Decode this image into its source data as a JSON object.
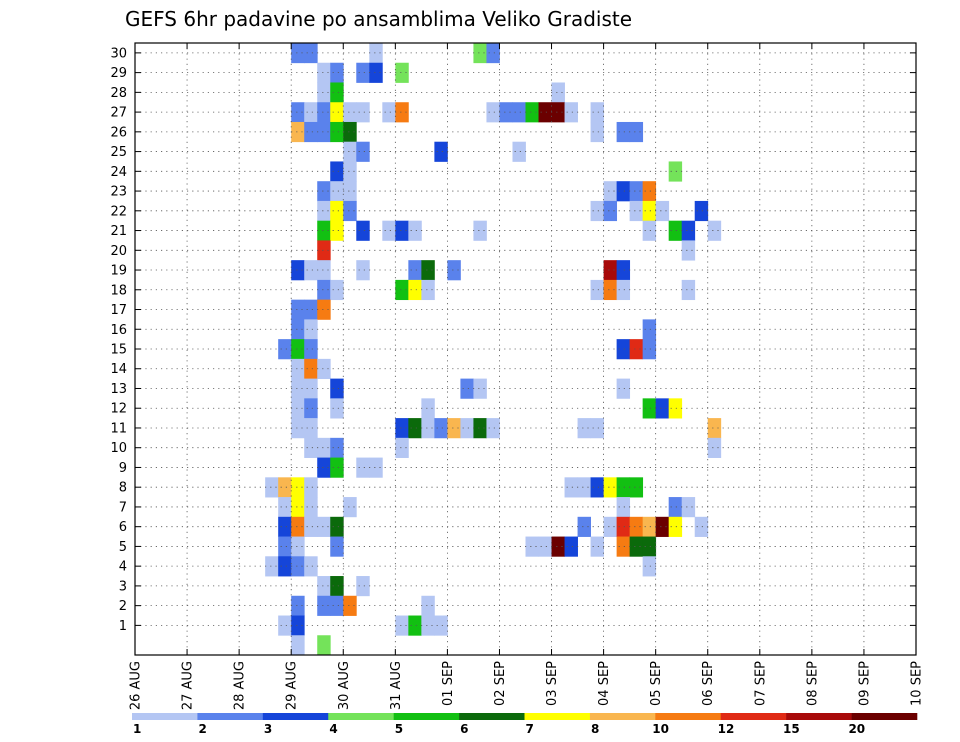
{
  "chart_data": {
    "type": "heatmap",
    "title": "GEFS 6hr padavine po ansamblima Veliko Gradiste",
    "x_ticks": [
      "26 AUG",
      "27 AUG",
      "28 AUG",
      "29 AUG",
      "30 AUG",
      "31 AUG",
      "01 SEP",
      "02 SEP",
      "03 SEP",
      "04 SEP",
      "05 SEP",
      "06 SEP",
      "07 SEP",
      "08 SEP",
      "09 SEP",
      "10 SEP"
    ],
    "y_ticks": [
      1,
      2,
      3,
      4,
      5,
      6,
      7,
      8,
      9,
      10,
      11,
      12,
      13,
      14,
      15,
      16,
      17,
      18,
      19,
      20,
      21,
      22,
      23,
      24,
      25,
      26,
      27,
      28,
      29,
      30
    ],
    "time_step_hours": 6,
    "grid": true,
    "legend": {
      "placement": "bottom",
      "labels": [
        "1",
        "2",
        "3",
        "4",
        "5",
        "6",
        "7",
        "8",
        "10",
        "12",
        "15",
        "20"
      ],
      "colors": [
        "#b4c6f3",
        "#5a82ec",
        "#1545d9",
        "#74e35a",
        "#12c012",
        "#0b6a0b",
        "#ffff00",
        "#f9b64f",
        "#f67b12",
        "#e02a15",
        "#a80a0a",
        "#6b0000"
      ]
    },
    "cells": [
      [
        12,
        30,
        2
      ],
      [
        13,
        30,
        2
      ],
      [
        18,
        30,
        1
      ],
      [
        26,
        30,
        4
      ],
      [
        27,
        30,
        2
      ],
      [
        14,
        29,
        1
      ],
      [
        15,
        29,
        2
      ],
      [
        17,
        29,
        2
      ],
      [
        18,
        29,
        3
      ],
      [
        20,
        29,
        4
      ],
      [
        14,
        28,
        1
      ],
      [
        15,
        28,
        5
      ],
      [
        32,
        28,
        1
      ],
      [
        12,
        27,
        2
      ],
      [
        13,
        27,
        1
      ],
      [
        14,
        27,
        2
      ],
      [
        15,
        27,
        7
      ],
      [
        16,
        27,
        1
      ],
      [
        17,
        27,
        1
      ],
      [
        19,
        27,
        1
      ],
      [
        20,
        27,
        9
      ],
      [
        27,
        27,
        1
      ],
      [
        28,
        27,
        2
      ],
      [
        29,
        27,
        2
      ],
      [
        30,
        27,
        5
      ],
      [
        31,
        27,
        12
      ],
      [
        32,
        27,
        12
      ],
      [
        33,
        27,
        1
      ],
      [
        35,
        27,
        1
      ],
      [
        12,
        26,
        8
      ],
      [
        13,
        26,
        2
      ],
      [
        14,
        26,
        2
      ],
      [
        15,
        26,
        5
      ],
      [
        16,
        26,
        6
      ],
      [
        35,
        26,
        1
      ],
      [
        37,
        26,
        2
      ],
      [
        38,
        26,
        2
      ],
      [
        16,
        25,
        1
      ],
      [
        17,
        25,
        2
      ],
      [
        23,
        25,
        3
      ],
      [
        29,
        25,
        1
      ],
      [
        15,
        24,
        3
      ],
      [
        16,
        24,
        1
      ],
      [
        41,
        24,
        4
      ],
      [
        14,
        23,
        2
      ],
      [
        15,
        23,
        1
      ],
      [
        16,
        23,
        1
      ],
      [
        36,
        23,
        1
      ],
      [
        37,
        23,
        3
      ],
      [
        38,
        23,
        2
      ],
      [
        39,
        23,
        9
      ],
      [
        14,
        22,
        1
      ],
      [
        15,
        22,
        7
      ],
      [
        16,
        22,
        2
      ],
      [
        35,
        22,
        1
      ],
      [
        36,
        22,
        2
      ],
      [
        38,
        22,
        1
      ],
      [
        39,
        22,
        7
      ],
      [
        40,
        22,
        1
      ],
      [
        43,
        22,
        3
      ],
      [
        14,
        21,
        5
      ],
      [
        15,
        21,
        7
      ],
      [
        17,
        21,
        3
      ],
      [
        19,
        21,
        1
      ],
      [
        20,
        21,
        3
      ],
      [
        21,
        21,
        1
      ],
      [
        26,
        21,
        1
      ],
      [
        39,
        21,
        1
      ],
      [
        41,
        21,
        5
      ],
      [
        42,
        21,
        3
      ],
      [
        44,
        21,
        1
      ],
      [
        14,
        20,
        10
      ],
      [
        42,
        20,
        1
      ],
      [
        12,
        19,
        3
      ],
      [
        13,
        19,
        1
      ],
      [
        14,
        19,
        1
      ],
      [
        17,
        19,
        1
      ],
      [
        21,
        19,
        2
      ],
      [
        22,
        19,
        6
      ],
      [
        24,
        19,
        2
      ],
      [
        36,
        19,
        11
      ],
      [
        37,
        19,
        3
      ],
      [
        14,
        18,
        2
      ],
      [
        15,
        18,
        1
      ],
      [
        20,
        18,
        5
      ],
      [
        21,
        18,
        7
      ],
      [
        22,
        18,
        1
      ],
      [
        35,
        18,
        1
      ],
      [
        36,
        18,
        9
      ],
      [
        37,
        18,
        1
      ],
      [
        42,
        18,
        1
      ],
      [
        12,
        17,
        2
      ],
      [
        13,
        17,
        2
      ],
      [
        14,
        17,
        9
      ],
      [
        12,
        16,
        2
      ],
      [
        13,
        16,
        1
      ],
      [
        39,
        16,
        2
      ],
      [
        11,
        15,
        2
      ],
      [
        12,
        15,
        5
      ],
      [
        13,
        15,
        2
      ],
      [
        37,
        15,
        3
      ],
      [
        38,
        15,
        10
      ],
      [
        39,
        15,
        2
      ],
      [
        12,
        14,
        1
      ],
      [
        13,
        14,
        9
      ],
      [
        14,
        14,
        1
      ],
      [
        12,
        13,
        1
      ],
      [
        13,
        13,
        1
      ],
      [
        15,
        13,
        3
      ],
      [
        25,
        13,
        2
      ],
      [
        26,
        13,
        1
      ],
      [
        37,
        13,
        1
      ],
      [
        12,
        12,
        1
      ],
      [
        13,
        12,
        2
      ],
      [
        15,
        12,
        1
      ],
      [
        22,
        12,
        1
      ],
      [
        39,
        12,
        5
      ],
      [
        40,
        12,
        3
      ],
      [
        41,
        12,
        7
      ],
      [
        12,
        11,
        1
      ],
      [
        13,
        11,
        1
      ],
      [
        20,
        11,
        3
      ],
      [
        21,
        11,
        6
      ],
      [
        22,
        11,
        1
      ],
      [
        23,
        11,
        2
      ],
      [
        24,
        11,
        8
      ],
      [
        25,
        11,
        1
      ],
      [
        26,
        11,
        6
      ],
      [
        27,
        11,
        1
      ],
      [
        34,
        11,
        1
      ],
      [
        35,
        11,
        1
      ],
      [
        44,
        11,
        8
      ],
      [
        13,
        10,
        1
      ],
      [
        14,
        10,
        1
      ],
      [
        15,
        10,
        2
      ],
      [
        20,
        10,
        1
      ],
      [
        44,
        10,
        1
      ],
      [
        14,
        9,
        3
      ],
      [
        15,
        9,
        5
      ],
      [
        17,
        9,
        1
      ],
      [
        18,
        9,
        1
      ],
      [
        10,
        8,
        1
      ],
      [
        11,
        8,
        8
      ],
      [
        12,
        8,
        7
      ],
      [
        13,
        8,
        1
      ],
      [
        33,
        8,
        1
      ],
      [
        34,
        8,
        1
      ],
      [
        35,
        8,
        3
      ],
      [
        36,
        8,
        7
      ],
      [
        37,
        8,
        5
      ],
      [
        38,
        8,
        5
      ],
      [
        11,
        7,
        1
      ],
      [
        12,
        7,
        7
      ],
      [
        13,
        7,
        1
      ],
      [
        16,
        7,
        1
      ],
      [
        37,
        7,
        1
      ],
      [
        41,
        7,
        2
      ],
      [
        42,
        7,
        1
      ],
      [
        11,
        6,
        3
      ],
      [
        12,
        6,
        9
      ],
      [
        13,
        6,
        1
      ],
      [
        14,
        6,
        1
      ],
      [
        15,
        6,
        6
      ],
      [
        34,
        6,
        2
      ],
      [
        36,
        6,
        1
      ],
      [
        37,
        6,
        10
      ],
      [
        38,
        6,
        9
      ],
      [
        39,
        6,
        8
      ],
      [
        40,
        6,
        12
      ],
      [
        41,
        6,
        7
      ],
      [
        43,
        6,
        1
      ],
      [
        11,
        5,
        2
      ],
      [
        12,
        5,
        1
      ],
      [
        15,
        5,
        2
      ],
      [
        30,
        5,
        1
      ],
      [
        31,
        5,
        1
      ],
      [
        32,
        5,
        12
      ],
      [
        33,
        5,
        3
      ],
      [
        35,
        5,
        1
      ],
      [
        37,
        5,
        9
      ],
      [
        38,
        5,
        6
      ],
      [
        39,
        5,
        6
      ],
      [
        10,
        4,
        1
      ],
      [
        11,
        4,
        3
      ],
      [
        12,
        4,
        2
      ],
      [
        13,
        4,
        1
      ],
      [
        39,
        4,
        1
      ],
      [
        14,
        3,
        1
      ],
      [
        15,
        3,
        6
      ],
      [
        17,
        3,
        1
      ],
      [
        12,
        2,
        2
      ],
      [
        14,
        2,
        2
      ],
      [
        15,
        2,
        2
      ],
      [
        16,
        2,
        9
      ],
      [
        22,
        2,
        1
      ],
      [
        11,
        1,
        1
      ],
      [
        12,
        1,
        3
      ],
      [
        20,
        1,
        1
      ],
      [
        21,
        1,
        5
      ],
      [
        22,
        1,
        1
      ],
      [
        23,
        1,
        1
      ],
      [
        12,
        0,
        1
      ],
      [
        14,
        0,
        4
      ]
    ]
  }
}
